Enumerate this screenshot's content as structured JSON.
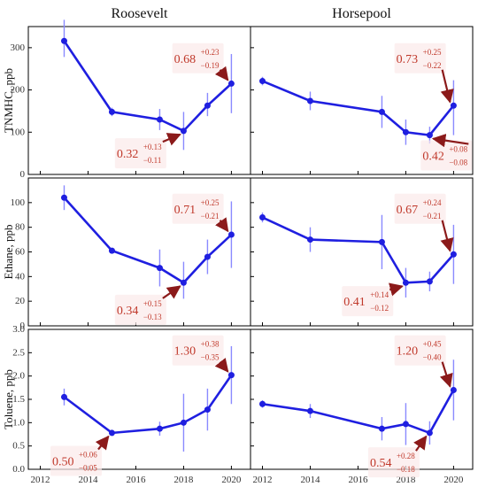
{
  "chart_data": {
    "type": "line",
    "columns": [
      "Roosevelt",
      "Horsepool"
    ],
    "x_ticks": [
      2012,
      2014,
      2016,
      2018,
      2020
    ],
    "xlim": [
      2011.5,
      2020.8
    ],
    "colors": {
      "line": "#1f1fe0",
      "annotation": "#c0392b",
      "arrow": "#8b1a1a",
      "errorbar": "#8a8aff"
    },
    "rows": [
      {
        "ylabel": "TNMHC, ppb",
        "ylim": [
          0,
          350
        ],
        "yticks": [
          0,
          100,
          200,
          300
        ],
        "panels": [
          {
            "site": "Roosevelt",
            "x": [
              2013,
              2015,
              2017,
              2018,
              2019,
              2020
            ],
            "y": [
              316,
              148,
              130,
              103,
              163,
              215
            ],
            "err_low": [
              38,
              10,
              25,
              45,
              25,
              70
            ],
            "err_high": [
              50,
              10,
              25,
              45,
              30,
              70
            ],
            "annotations": [
              {
                "value": "0.32",
                "plus": "+0.13",
                "minus": "−0.11",
                "tx": 2015.2,
                "ty": 50,
                "ax": 2018,
                "ay": 103,
                "align": "start"
              },
              {
                "value": "0.68",
                "plus": "+0.23",
                "minus": "−0.19",
                "tx": 2017.6,
                "ty": 275,
                "ax": 2020,
                "ay": 215,
                "align": "start"
              }
            ]
          },
          {
            "site": "Horsepool",
            "x": [
              2012,
              2014,
              2017,
              2018,
              2019,
              2020
            ],
            "y": [
              221,
              174,
              148,
              100,
              93,
              163
            ],
            "err_low": [
              10,
              22,
              38,
              30,
              20,
              70
            ],
            "err_high": [
              10,
              22,
              38,
              30,
              20,
              60
            ],
            "annotations": [
              {
                "value": "0.73",
                "plus": "+0.25",
                "minus": "−0.22",
                "tx": 2017.6,
                "ty": 275,
                "ax": 2020,
                "ay": 163,
                "align": "start"
              },
              {
                "value": "0.42",
                "plus": "+0.08",
                "minus": "−0.08",
                "tx": 2018.7,
                "ty": 45,
                "ax": 2019,
                "ay": 93,
                "align": "start"
              }
            ]
          }
        ]
      },
      {
        "ylabel": "Ethane, ppb",
        "ylim": [
          0,
          120
        ],
        "yticks": [
          0,
          20,
          40,
          60,
          80,
          100
        ],
        "panels": [
          {
            "site": "Roosevelt",
            "x": [
              2013,
              2015,
              2017,
              2018,
              2019,
              2020
            ],
            "y": [
              104,
              61,
              47,
              35,
              56,
              74
            ],
            "err_low": [
              10,
              2,
              15,
              13,
              14,
              27
            ],
            "err_high": [
              10,
              2,
              15,
              17,
              14,
              27
            ],
            "annotations": [
              {
                "value": "0.34",
                "plus": "+0.15",
                "minus": "−0.13",
                "tx": 2015.2,
                "ty": 13,
                "ax": 2018,
                "ay": 35,
                "align": "start"
              },
              {
                "value": "0.71",
                "plus": "+0.25",
                "minus": "−0.21",
                "tx": 2017.6,
                "ty": 95,
                "ax": 2020,
                "ay": 74,
                "align": "start"
              }
            ]
          },
          {
            "site": "Horsepool",
            "x": [
              2012,
              2014,
              2017,
              2018,
              2019,
              2020
            ],
            "y": [
              88,
              70,
              68,
              35,
              36,
              58
            ],
            "err_low": [
              4,
              10,
              22,
              12,
              8,
              24
            ],
            "err_high": [
              4,
              10,
              22,
              12,
              8,
              24
            ],
            "annotations": [
              {
                "value": "0.67",
                "plus": "+0.24",
                "minus": "−0.21",
                "tx": 2017.6,
                "ty": 95,
                "ax": 2020,
                "ay": 58,
                "align": "start"
              },
              {
                "value": "0.41",
                "plus": "+0.14",
                "minus": "−0.12",
                "tx": 2015.4,
                "ty": 20,
                "ax": 2018,
                "ay": 35,
                "align": "start"
              }
            ]
          }
        ]
      },
      {
        "ylabel": "Toluene, ppb",
        "ylim": [
          0,
          3.0
        ],
        "yticks": [
          0,
          0.5,
          1.0,
          1.5,
          2.0,
          2.5,
          3.0
        ],
        "panels": [
          {
            "site": "Roosevelt",
            "x": [
              2013,
              2015,
              2017,
              2018,
              2019,
              2020
            ],
            "y": [
              1.55,
              0.78,
              0.87,
              1.0,
              1.28,
              2.02
            ],
            "err_low": [
              0.18,
              0.05,
              0.15,
              0.62,
              0.45,
              0.62
            ],
            "err_high": [
              0.18,
              0.05,
              0.15,
              0.62,
              0.45,
              0.62
            ],
            "annotations": [
              {
                "value": "0.50",
                "plus": "+0.06",
                "minus": "−0.05",
                "tx": 2012.5,
                "ty": 0.18,
                "ax": 2015,
                "ay": 0.78,
                "align": "start"
              },
              {
                "value": "1.30",
                "plus": "+0.38",
                "minus": "−0.35",
                "tx": 2017.6,
                "ty": 2.55,
                "ax": 2020,
                "ay": 2.02,
                "align": "start"
              }
            ]
          },
          {
            "site": "Horsepool",
            "x": [
              2012,
              2014,
              2017,
              2018,
              2019,
              2020
            ],
            "y": [
              1.4,
              1.25,
              0.87,
              0.97,
              0.78,
              1.7
            ],
            "err_low": [
              0.08,
              0.15,
              0.25,
              0.45,
              0.25,
              0.65
            ],
            "err_high": [
              0.08,
              0.15,
              0.25,
              0.45,
              0.25,
              0.65
            ],
            "annotations": [
              {
                "value": "1.20",
                "plus": "+0.45",
                "minus": "−0.40",
                "tx": 2017.6,
                "ty": 2.55,
                "ax": 2020,
                "ay": 1.7,
                "align": "start"
              },
              {
                "value": "0.54",
                "plus": "+0.28",
                "minus": "−0.18",
                "tx": 2016.5,
                "ty": 0.15,
                "ax": 2019,
                "ay": 0.78,
                "align": "start"
              }
            ]
          }
        ]
      }
    ]
  }
}
